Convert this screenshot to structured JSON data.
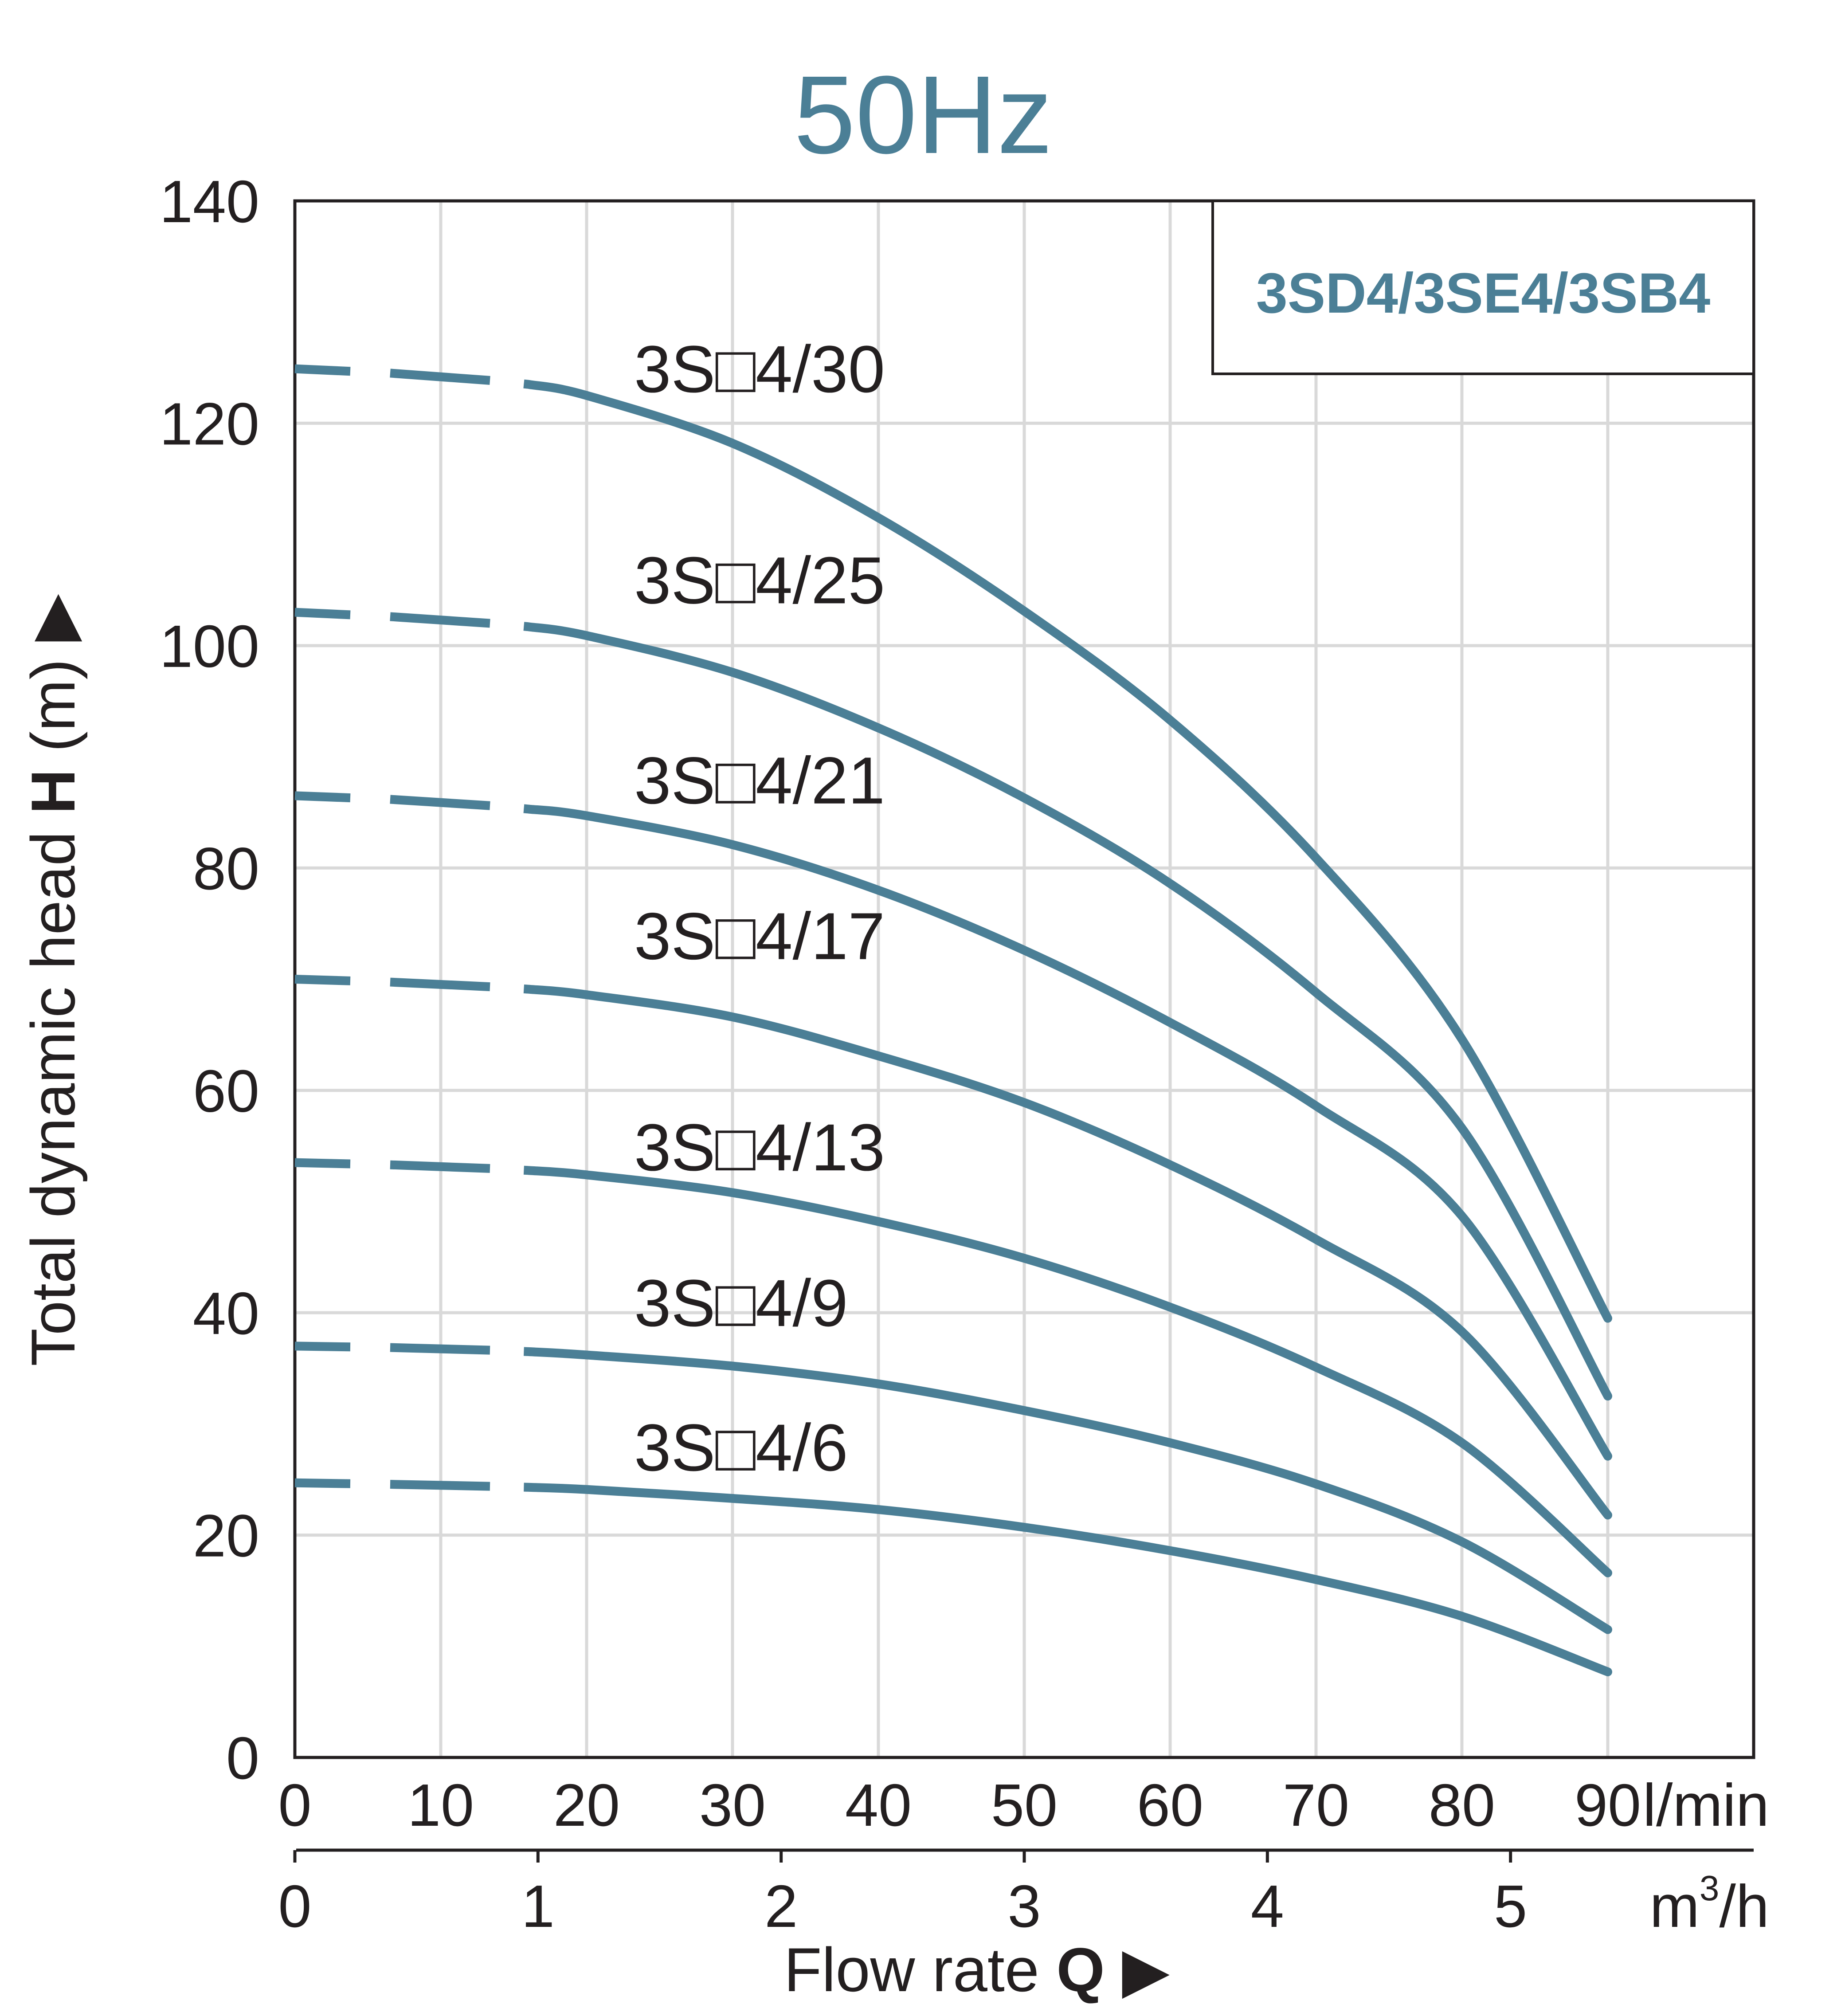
{
  "chart_data": {
    "type": "line",
    "title": "50Hz",
    "legend": "3SD4/3SE4/3SB4",
    "legend_position": "top-right",
    "grid": true,
    "y_axis": {
      "label_prefix": "Total dynamic head",
      "label_bold": "H",
      "label_suffix": "(m)",
      "arrow": "▶",
      "ticks": [
        "0",
        "20",
        "40",
        "60",
        "80",
        "100",
        "120",
        "140"
      ],
      "range": [
        0,
        140
      ]
    },
    "x_axis_lmin": {
      "unit": "l/min",
      "ticks": [
        "0",
        "10",
        "20",
        "30",
        "40",
        "50",
        "60",
        "70",
        "80",
        "90"
      ],
      "range": [
        0,
        100
      ]
    },
    "x_axis_m3h": {
      "unit_base": "m",
      "unit_sup": "3",
      "unit_rest": "/h",
      "ticks": [
        "0",
        "1",
        "2",
        "3",
        "4",
        "5"
      ],
      "range": [
        0,
        6
      ],
      "lmin_per_unit": 16.6667
    },
    "x_title": {
      "prefix": "Flow rate",
      "bold": "Q",
      "arrow": "▶"
    },
    "series": [
      {
        "name": "3S□4/30",
        "x": [
          0,
          10,
          16,
          20,
          30,
          40,
          50,
          60,
          70,
          80,
          90
        ],
        "y": [
          124.9,
          124.3,
          123.5,
          122.5,
          118.2,
          111.5,
          103.1,
          93.3,
          80.9,
          64.6,
          39.5
        ]
      },
      {
        "name": "3S□4/25",
        "x": [
          0,
          10,
          16,
          20,
          30,
          40,
          50,
          60,
          70,
          80,
          90
        ],
        "y": [
          103.0,
          102.4,
          101.7,
          100.9,
          97.6,
          92.6,
          86.3,
          78.6,
          68.8,
          56.6,
          32.5
        ]
      },
      {
        "name": "3S□4/21",
        "x": [
          0,
          10,
          16,
          20,
          30,
          40,
          50,
          60,
          70,
          80,
          90
        ],
        "y": [
          86.5,
          86.0,
          85.3,
          84.7,
          82.1,
          78.0,
          72.6,
          66.1,
          58.6,
          48.7,
          27.1
        ]
      },
      {
        "name": "3S□4/17",
        "x": [
          0,
          10,
          16,
          20,
          30,
          40,
          50,
          60,
          70,
          80,
          90
        ],
        "y": [
          70.0,
          69.6,
          69.1,
          68.6,
          66.6,
          63.1,
          58.9,
          53.3,
          46.6,
          38.3,
          21.8
        ]
      },
      {
        "name": "3S□4/13",
        "x": [
          0,
          10,
          16,
          20,
          30,
          40,
          50,
          60,
          70,
          80,
          90
        ],
        "y": [
          53.5,
          53.2,
          52.8,
          52.4,
          50.8,
          48.2,
          44.9,
          40.5,
          35.1,
          28.3,
          16.6
        ]
      },
      {
        "name": "3S□4/9",
        "x": [
          0,
          10,
          16,
          20,
          30,
          40,
          50,
          60,
          70,
          80,
          90
        ],
        "y": [
          37.0,
          36.8,
          36.5,
          36.2,
          35.2,
          33.6,
          31.2,
          28.3,
          24.6,
          19.4,
          11.5
        ]
      },
      {
        "name": "3S□4/6",
        "x": [
          0,
          10,
          16,
          20,
          30,
          40,
          50,
          60,
          70,
          80,
          90
        ],
        "y": [
          24.7,
          24.5,
          24.3,
          24.1,
          23.3,
          22.3,
          20.7,
          18.6,
          16.0,
          12.7,
          7.7
        ]
      }
    ]
  }
}
